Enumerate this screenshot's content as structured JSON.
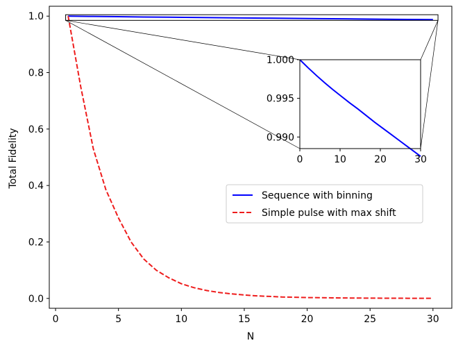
{
  "chart_data": {
    "type": "line",
    "xlabel": "N",
    "ylabel": "Total Fidelity",
    "xlim": [
      -0.5,
      31.5
    ],
    "ylim": [
      -0.035,
      1.035
    ],
    "xticks": [
      0,
      5,
      10,
      15,
      20,
      25,
      30
    ],
    "xtick_labels": [
      "0",
      "5",
      "10",
      "15",
      "20",
      "25",
      "30"
    ],
    "yticks": [
      0.0,
      0.2,
      0.4,
      0.6,
      0.8,
      1.0
    ],
    "ytick_labels": [
      "0.0",
      "0.2",
      "0.4",
      "0.6",
      "0.8",
      "1.0"
    ],
    "grid": false,
    "legend_position": "center-right",
    "series": [
      {
        "name": "Sequence with binning",
        "color": "#0000ff",
        "linestyle": "solid",
        "x": [
          1,
          3,
          5,
          7,
          9,
          11,
          13,
          15,
          17,
          19,
          21,
          23,
          25,
          27,
          29,
          30
        ],
        "y": [
          1.0,
          0.99895,
          0.99795,
          0.997,
          0.9961,
          0.99525,
          0.9944,
          0.9936,
          0.99275,
          0.9919,
          0.9911,
          0.9903,
          0.9895,
          0.9887,
          0.9879,
          0.9875
        ]
      },
      {
        "name": "Simple pulse with max shift",
        "color": "#ee1c1c",
        "linestyle": "dashed",
        "x": [
          1,
          2,
          3,
          4,
          5,
          6,
          7,
          8,
          9,
          10,
          11,
          12,
          13,
          14,
          15,
          16,
          17,
          18,
          19,
          20,
          21,
          22,
          23,
          24,
          25,
          26,
          27,
          28,
          29,
          30
        ],
        "y": [
          1.0,
          0.75,
          0.53,
          0.385,
          0.285,
          0.2,
          0.14,
          0.1,
          0.073,
          0.052,
          0.038,
          0.028,
          0.021,
          0.016,
          0.012,
          0.009,
          0.007,
          0.005,
          0.004,
          0.003,
          0.0025,
          0.002,
          0.0015,
          0.0012,
          0.001,
          0.0008,
          0.0006,
          0.0005,
          0.0004,
          0.0003
        ]
      }
    ],
    "inset": {
      "xlim": [
        0,
        30
      ],
      "ylim": [
        0.9885,
        1.0
      ],
      "xticks": [
        0,
        10,
        20,
        30
      ],
      "xtick_labels": [
        "0",
        "10",
        "20",
        "30"
      ],
      "yticks": [
        0.99,
        0.995,
        1.0
      ],
      "ytick_labels": [
        "0.990",
        "0.995",
        "1.000"
      ],
      "zoom_region": {
        "x": [
          0.8,
          30.4
        ],
        "y": [
          0.985,
          1.005
        ]
      }
    }
  }
}
